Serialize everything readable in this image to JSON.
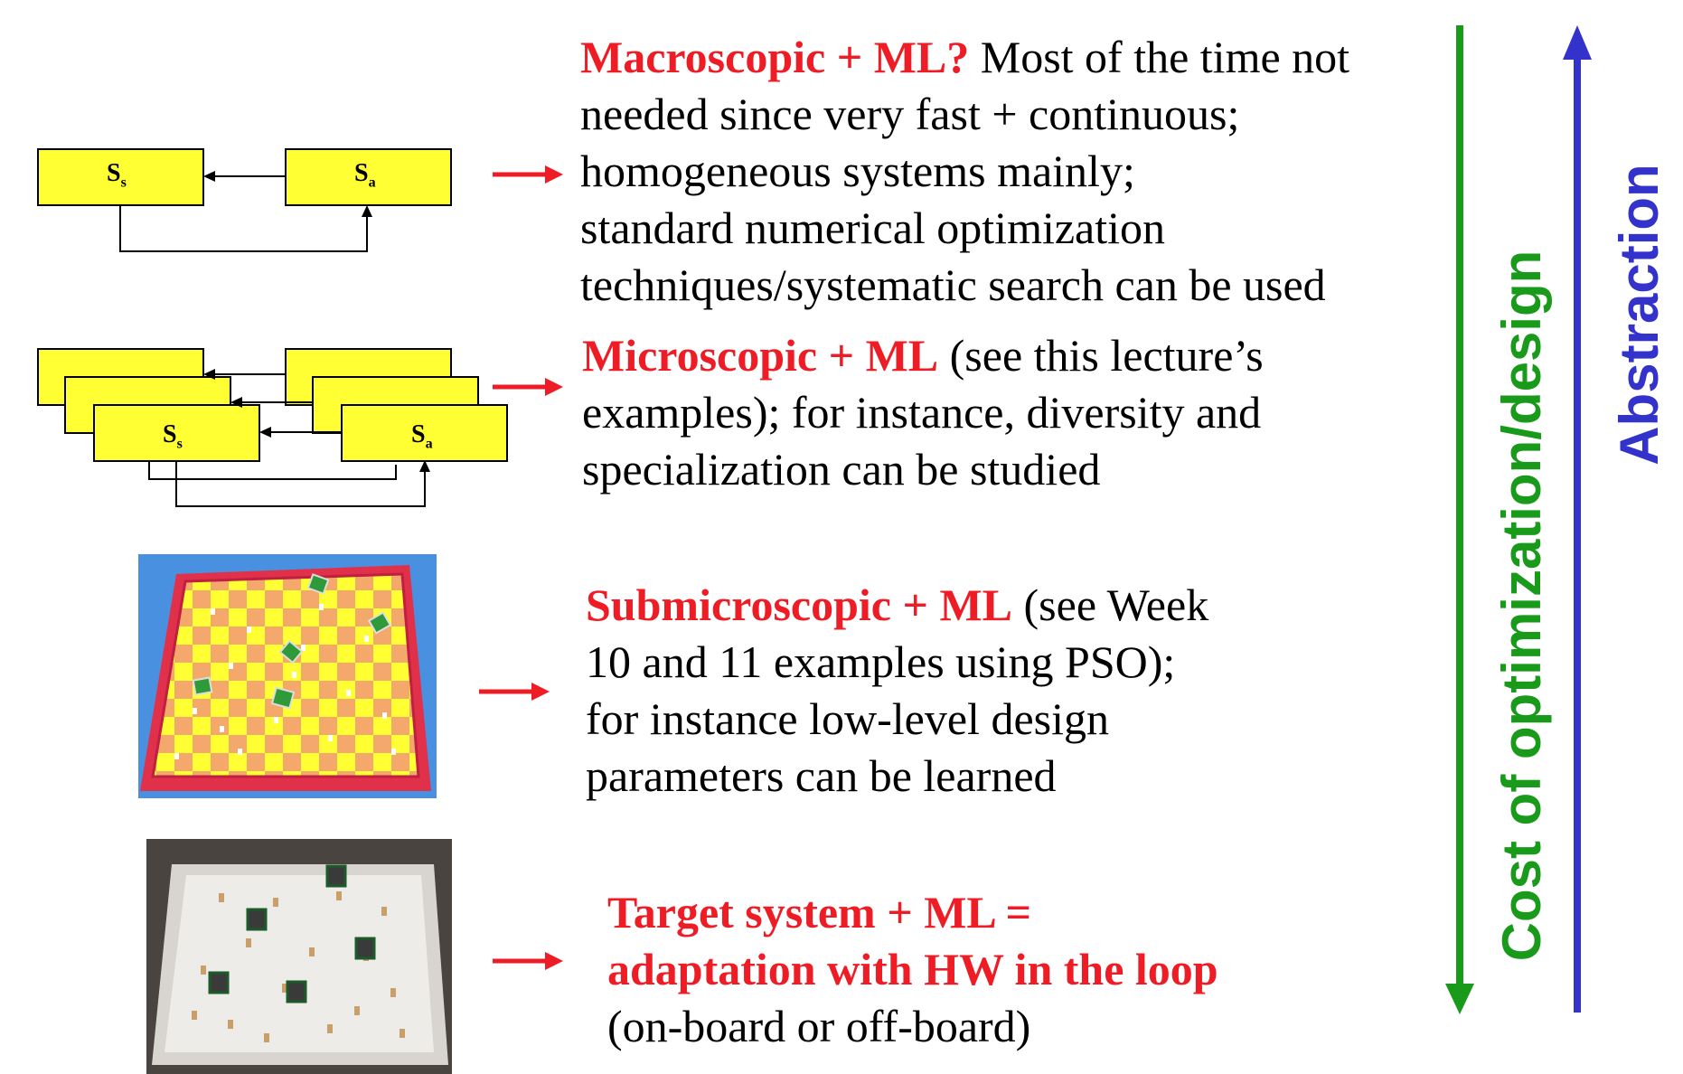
{
  "colors": {
    "highlight": "#ee1c25",
    "box_fill": "#ffff33",
    "cost_arrow": "#1a9a1a",
    "abstraction_arrow": "#3333cc",
    "arrow_red": "#ee1c25"
  },
  "macroscopic": {
    "box_left": {
      "main": "S",
      "sub": "s"
    },
    "box_right": {
      "main": "S",
      "sub": "a"
    },
    "heading": "Macroscopic + ML?",
    "lines": [
      " Most of the time not",
      "needed since very fast + continuous;",
      "homogeneous systems mainly;",
      "standard numerical optimization",
      "techniques/systematic search can be used"
    ]
  },
  "microscopic": {
    "box_left": {
      "main": "S",
      "sub": "s"
    },
    "box_right": {
      "main": "S",
      "sub": "a"
    },
    "heading": "Microscopic + ML",
    "lines": [
      " (see this lecture’s",
      "examples); for instance, diversity and",
      "specialization can be studied"
    ]
  },
  "submicroscopic": {
    "heading": "Submicroscopic + ML",
    "lines": [
      " (see Week",
      "10 and 11 examples using PSO);",
      "for instance low-level design",
      "parameters can be learned"
    ]
  },
  "target": {
    "heading_lines": [
      "Target system + ML =",
      "adaptation with HW in the loop"
    ],
    "lines": [
      "(on-board or off-board)"
    ]
  },
  "axes": {
    "cost_label": "Cost of optimization/design",
    "abstraction_label": "Abstraction"
  }
}
